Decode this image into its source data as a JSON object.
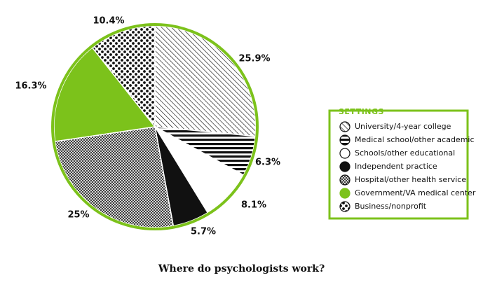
{
  "chart_data": {
    "type": "pie",
    "title": "Where do psychologists work?",
    "legend_title": "SETTINGS",
    "legend_position": "right",
    "categories": [
      "University/4-year college",
      "Medical school/other academic",
      "Schools/other educational",
      "Independent practice",
      "Hospital/other health service",
      "Government/VA medical center",
      "Business/nonprofit"
    ],
    "values": [
      25.9,
      6.3,
      8.1,
      5.7,
      25,
      16.3,
      10.4
    ],
    "value_labels": [
      "25.9%",
      "6.3%",
      "8.1%",
      "5.7%",
      "25%",
      "16.3%",
      "10.4%"
    ],
    "patterns": [
      "diagonal-lines",
      "horizontal-stripes",
      "white",
      "solid-black",
      "crosshatch",
      "solid-green",
      "dots"
    ],
    "colors": {
      "accent_green": "#7cc21b",
      "ink": "#111111"
    }
  }
}
